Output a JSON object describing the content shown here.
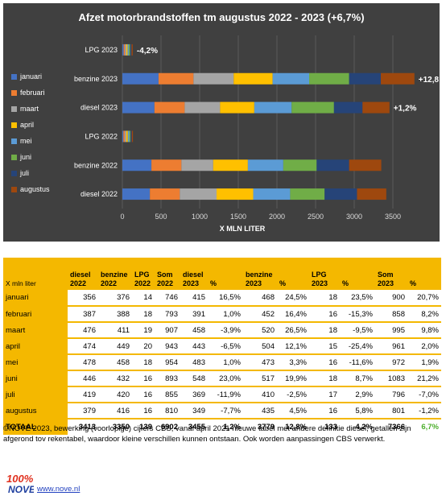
{
  "chart_data": {
    "type": "bar",
    "orientation": "horizontal-stacked",
    "title": "Afzet motorbrandstoffen tm augustus 2022 - 2023 (+6,7%)",
    "xlabel": "X MLN LITER",
    "xlim": [
      0,
      4000
    ],
    "xticks": [
      0,
      500,
      1000,
      1500,
      2000,
      2500,
      3000,
      3500
    ],
    "categories": [
      "diesel 2022",
      "benzine 2022",
      "LPG 2022",
      "diesel 2023",
      "benzine 2023",
      "LPG 2023"
    ],
    "series": [
      {
        "name": "januari",
        "color": "#4472c4",
        "values": [
          356,
          376,
          14,
          415,
          468,
          18
        ]
      },
      {
        "name": "februari",
        "color": "#ed7d31",
        "values": [
          387,
          388,
          18,
          391,
          452,
          16
        ]
      },
      {
        "name": "maart",
        "color": "#a5a5a5",
        "values": [
          476,
          411,
          19,
          458,
          520,
          18
        ]
      },
      {
        "name": "april",
        "color": "#ffc000",
        "values": [
          474,
          449,
          20,
          443,
          504,
          15
        ]
      },
      {
        "name": "mei",
        "color": "#5b9bd5",
        "values": [
          478,
          458,
          18,
          483,
          473,
          16
        ]
      },
      {
        "name": "juni",
        "color": "#70ad47",
        "values": [
          446,
          432,
          16,
          548,
          517,
          18
        ]
      },
      {
        "name": "juli",
        "color": "#264478",
        "values": [
          419,
          420,
          16,
          369,
          410,
          17
        ]
      },
      {
        "name": "augustus",
        "color": "#9e480e",
        "values": [
          379,
          416,
          16,
          349,
          435,
          16
        ]
      }
    ],
    "annotations": [
      {
        "category": "diesel 2023",
        "text": "+1,2%"
      },
      {
        "category": "benzine 2023",
        "text": "+12,8"
      },
      {
        "category": "LPG 2023",
        "text": "-4,2%"
      }
    ],
    "legend_position": "left",
    "grid": true,
    "background": "#404040"
  },
  "table": {
    "unit": "X mln liter",
    "headers": [
      "diesel 2022",
      "benzine 2022",
      "LPG 2022",
      "Som 2022",
      "diesel 2023",
      "%",
      "benzine 2023",
      "%",
      "LPG 2023",
      "%",
      "Som 2023",
      "%"
    ],
    "rows": [
      {
        "label": "januari",
        "cells": [
          "356",
          "376",
          "14",
          "746",
          "415",
          "16,5%",
          "468",
          "24,5%",
          "18",
          "23,5%",
          "900",
          "20,7%"
        ]
      },
      {
        "label": "februari",
        "cells": [
          "387",
          "388",
          "18",
          "793",
          "391",
          "1,0%",
          "452",
          "16,4%",
          "16",
          "-15,3%",
          "858",
          "8,2%"
        ]
      },
      {
        "label": "maart",
        "cells": [
          "476",
          "411",
          "19",
          "907",
          "458",
          "-3,9%",
          "520",
          "26,5%",
          "18",
          "-9,5%",
          "995",
          "9,8%"
        ]
      },
      {
        "label": "april",
        "cells": [
          "474",
          "449",
          "20",
          "943",
          "443",
          "-6,5%",
          "504",
          "12,1%",
          "15",
          "-25,4%",
          "961",
          "2,0%"
        ]
      },
      {
        "label": "mei",
        "cells": [
          "478",
          "458",
          "18",
          "954",
          "483",
          "1,0%",
          "473",
          "3,3%",
          "16",
          "-11,6%",
          "972",
          "1,9%"
        ]
      },
      {
        "label": "juni",
        "cells": [
          "446",
          "432",
          "16",
          "893",
          "548",
          "23,0%",
          "517",
          "19,9%",
          "18",
          "8,7%",
          "1083",
          "21,2%"
        ]
      },
      {
        "label": "juli",
        "cells": [
          "419",
          "420",
          "16",
          "855",
          "369",
          "-11,9%",
          "410",
          "-2,5%",
          "17",
          "2,9%",
          "796",
          "-7,0%"
        ]
      },
      {
        "label": "augustus",
        "cells": [
          "379",
          "416",
          "16",
          "810",
          "349",
          "-7,7%",
          "435",
          "4,5%",
          "16",
          "5,8%",
          "801",
          "-1,2%"
        ]
      }
    ],
    "total": {
      "label": "TOTAAL",
      "cells": [
        "3413",
        "3350",
        "139",
        "6902",
        "3455",
        "1,2%",
        "3779",
        "12,8%",
        "133",
        "-4,2%",
        "7366",
        "6,7%"
      ]
    }
  },
  "footnote": "©NOVE 2023, bewerking (voorlopige) cijfers CBS, vanaf april 2021 nieuwe tabel met andere definitie diesel; getallen zijn afgerond tov rekentabel, waardoor kleine verschillen kunnen ontstaan. Ook worden aanpassingen CBS verwerkt.",
  "logo_text": "100% NOVE",
  "url": "www.nove.nl"
}
